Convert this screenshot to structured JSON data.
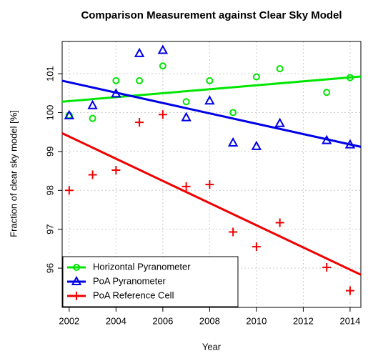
{
  "chart_data": {
    "type": "scatter",
    "title": "Comparison Measurement against Clear Sky Model",
    "x_label": "Year",
    "y_label": "Fraction of clear sky model [%]",
    "x": [
      2002,
      2003,
      2004,
      2005,
      2006,
      2007,
      2008,
      2009,
      2010,
      2011,
      2013,
      2014
    ],
    "series": [
      {
        "name": "Horizontal Pyranometer",
        "color": "#00e600",
        "marker": "circle",
        "values": [
          99.93,
          99.85,
          100.82,
          100.82,
          101.2,
          100.28,
          100.82,
          100.0,
          100.92,
          101.13,
          100.52,
          100.9
        ],
        "trend_x": [
          2001.7,
          2014.46
        ],
        "trend_y": [
          100.28,
          100.93
        ]
      },
      {
        "name": "PoA Pyranometer",
        "color": "#0000e6",
        "marker": "triangle",
        "values": [
          99.92,
          100.18,
          100.48,
          101.52,
          101.6,
          99.87,
          100.3,
          99.22,
          99.13,
          99.72,
          99.28,
          99.17
        ],
        "trend_x": [
          2001.7,
          2014.46
        ],
        "trend_y": [
          100.82,
          99.12
        ]
      },
      {
        "name": "PoA Reference Cell",
        "color": "#f00000",
        "marker": "plus",
        "values": [
          98.0,
          98.4,
          98.52,
          99.75,
          99.95,
          98.1,
          98.15,
          96.93,
          96.55,
          97.17,
          96.02,
          95.42
        ],
        "trend_x": [
          2001.7,
          2014.46
        ],
        "trend_y": [
          99.47,
          95.83
        ]
      }
    ],
    "xlim": [
      2001.7,
      2014.46
    ],
    "ylim": [
      94.99,
      101.83
    ],
    "xticks": [
      2002,
      2004,
      2006,
      2008,
      2010,
      2012,
      2014
    ],
    "yticks": [
      96,
      97,
      98,
      99,
      100,
      101
    ],
    "grid": true,
    "legend": "bottom-left"
  }
}
